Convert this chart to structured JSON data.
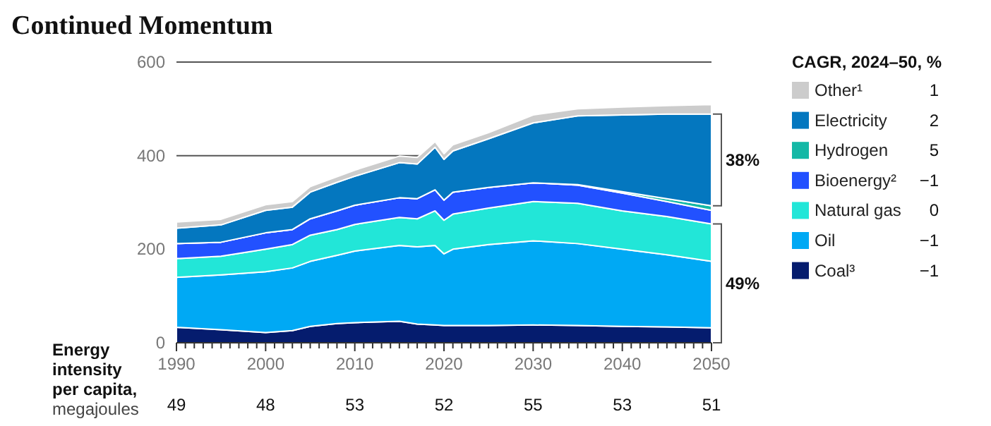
{
  "chart_data": [
    {
      "type": "area",
      "title": "Continued Momentum",
      "stacked": true,
      "legend_title": "CAGR, 2024–50, %",
      "legend": "right",
      "grid": "y",
      "x": [
        1990,
        1995,
        2000,
        2003,
        2005,
        2008,
        2010,
        2015,
        2017,
        2019,
        2020,
        2021,
        2025,
        2030,
        2035,
        2040,
        2045,
        2050
      ],
      "xlim": [
        1990,
        2050
      ],
      "xticks": [
        1990,
        {
          "value": 1991,
          "label": null
        },
        {
          "value": 1992,
          "label": null
        },
        {
          "value": 1993,
          "label": null
        },
        {
          "value": 1994,
          "label": null
        },
        {
          "value": 1995,
          "label": null
        },
        {
          "value": 1996,
          "label": null
        },
        {
          "value": 1997,
          "label": null
        },
        {
          "value": 1998,
          "label": null
        },
        {
          "value": 1999,
          "label": null
        },
        2000,
        {
          "value": 2001,
          "label": null
        },
        {
          "value": 2002,
          "label": null
        },
        {
          "value": 2003,
          "label": null
        },
        {
          "value": 2004,
          "label": null
        },
        {
          "value": 2005,
          "label": null
        },
        {
          "value": 2006,
          "label": null
        },
        {
          "value": 2007,
          "label": null
        },
        {
          "value": 2008,
          "label": null
        },
        {
          "value": 2009,
          "label": null
        },
        2010,
        {
          "value": 2011,
          "label": null
        },
        {
          "value": 2012,
          "label": null
        },
        {
          "value": 2013,
          "label": null
        },
        {
          "value": 2014,
          "label": null
        },
        {
          "value": 2015,
          "label": null
        },
        {
          "value": 2016,
          "label": null
        },
        {
          "value": 2017,
          "label": null
        },
        {
          "value": 2018,
          "label": null
        },
        {
          "value": 2019,
          "label": null
        },
        2020,
        {
          "value": 2021,
          "label": null
        },
        {
          "value": 2022,
          "label": null
        },
        {
          "value": 2023,
          "label": null
        },
        {
          "value": 2024,
          "label": null
        },
        {
          "value": 2025,
          "label": null
        },
        {
          "value": 2026,
          "label": null
        },
        {
          "value": 2027,
          "label": null
        },
        {
          "value": 2028,
          "label": null
        },
        {
          "value": 2029,
          "label": null
        },
        2030,
        {
          "value": 2031,
          "label": null
        },
        {
          "value": 2032,
          "label": null
        },
        {
          "value": 2033,
          "label": null
        },
        {
          "value": 2034,
          "label": null
        },
        {
          "value": 2035,
          "label": null
        },
        {
          "value": 2036,
          "label": null
        },
        {
          "value": 2037,
          "label": null
        },
        {
          "value": 2038,
          "label": null
        },
        {
          "value": 2039,
          "label": null
        },
        2040,
        {
          "value": 2041,
          "label": null
        },
        {
          "value": 2042,
          "label": null
        },
        {
          "value": 2043,
          "label": null
        },
        {
          "value": 2044,
          "label": null
        },
        {
          "value": 2045,
          "label": null
        },
        {
          "value": 2046,
          "label": null
        },
        {
          "value": 2047,
          "label": null
        },
        {
          "value": 2048,
          "label": null
        },
        {
          "value": 2049,
          "label": null
        },
        2050
      ],
      "ylim": [
        0,
        600
      ],
      "yticks": [
        0,
        200,
        400,
        600
      ],
      "annotations": [
        "38%",
        "49%",
        "1",
        "2",
        "5",
        "−1",
        "0",
        "−1",
        "−1"
      ],
      "series": [
        {
          "name": "Coal³",
          "color": "#051c6e",
          "values": [
            33,
            28,
            22,
            26,
            35,
            41,
            43,
            46,
            40,
            38,
            37,
            37,
            37,
            38,
            37,
            35,
            34,
            32
          ]
        },
        {
          "name": "Oil",
          "color": "#00a9f4",
          "values": [
            107,
            117,
            130,
            134,
            139,
            146,
            153,
            162,
            165,
            170,
            153,
            163,
            173,
            180,
            175,
            165,
            154,
            142
          ]
        },
        {
          "name": "Natural gas",
          "color": "#22e6d8",
          "values": [
            40,
            40,
            48,
            50,
            56,
            55,
            57,
            60,
            60,
            74,
            72,
            75,
            78,
            84,
            86,
            82,
            82,
            80
          ]
        },
        {
          "name": "Bioenergy²",
          "color": "#2251ff",
          "values": [
            32,
            30,
            35,
            32,
            35,
            40,
            41,
            42,
            43,
            45,
            43,
            47,
            44,
            40,
            39,
            38,
            32,
            29
          ]
        },
        {
          "name": "Hydrogen",
          "color": "#14b8a6",
          "values": [
            0,
            0,
            0,
            0,
            0,
            0,
            0,
            0,
            0,
            0,
            0,
            0,
            0,
            0,
            1,
            3,
            6,
            10
          ]
        },
        {
          "name": "Electricity",
          "color": "#0477bf",
          "values": [
            33,
            37,
            48,
            48,
            57,
            61,
            62,
            75,
            74,
            91,
            87,
            88,
            104,
            128,
            147,
            164,
            181,
            196
          ]
        },
        {
          "name": "Other¹",
          "color": "#cccccc",
          "values": [
            13,
            12,
            12,
            12,
            12,
            12,
            13,
            14,
            14,
            12,
            12,
            13,
            13,
            17,
            15,
            17,
            18,
            20
          ]
        }
      ]
    },
    {
      "type": "other",
      "title": "Energy intensity per capita,",
      "subtitle": "megajoules",
      "categories": [
        null,
        null,
        null,
        null,
        null,
        null,
        null
      ],
      "values": [
        49,
        48,
        53,
        52,
        55,
        53,
        51
      ],
      "data_labels": true
    }
  ]
}
